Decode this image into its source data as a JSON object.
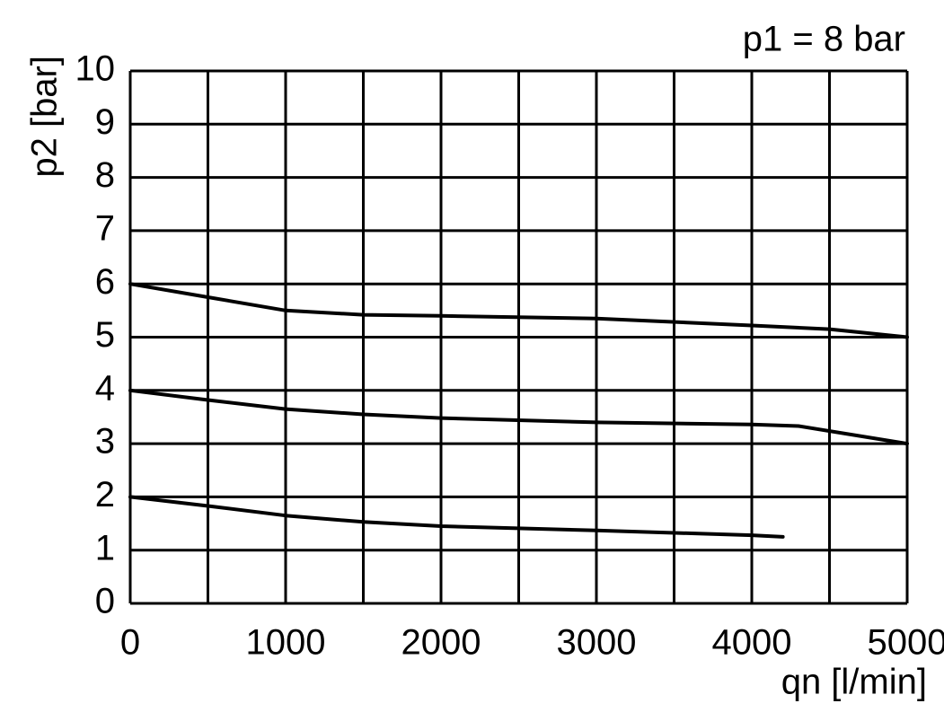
{
  "chart_data": {
    "type": "line",
    "annotation": "p1 = 8 bar",
    "x_label": "qn [l/min]",
    "y_label": "p2 [bar]",
    "xlim": [
      0,
      5000
    ],
    "xticks": [
      0,
      1000,
      2000,
      3000,
      4000,
      5000
    ],
    "xminorticks": [
      500,
      1500,
      2500,
      3500,
      4500
    ],
    "ylim": [
      0,
      10
    ],
    "yticks": [
      0,
      1,
      2,
      3,
      4,
      5,
      6,
      7,
      8,
      9,
      10
    ],
    "grid": true,
    "series": [
      {
        "color": "#000000",
        "x": [
          0,
          500,
          1000,
          1500,
          2000,
          3000,
          4000,
          4500,
          5000
        ],
        "values": [
          6,
          5.75,
          5.5,
          5.42,
          5.4,
          5.35,
          5.22,
          5.15,
          5.0
        ]
      },
      {
        "color": "#000000",
        "x": [
          0,
          500,
          1000,
          1500,
          2000,
          3000,
          4000,
          4300,
          5000
        ],
        "values": [
          4,
          3.82,
          3.65,
          3.55,
          3.48,
          3.4,
          3.36,
          3.33,
          3.0
        ]
      },
      {
        "color": "#000000",
        "x": [
          0,
          500,
          1000,
          1500,
          2000,
          3000,
          4000,
          4200
        ],
        "values": [
          2,
          1.83,
          1.65,
          1.53,
          1.45,
          1.37,
          1.28,
          1.25
        ]
      }
    ]
  }
}
